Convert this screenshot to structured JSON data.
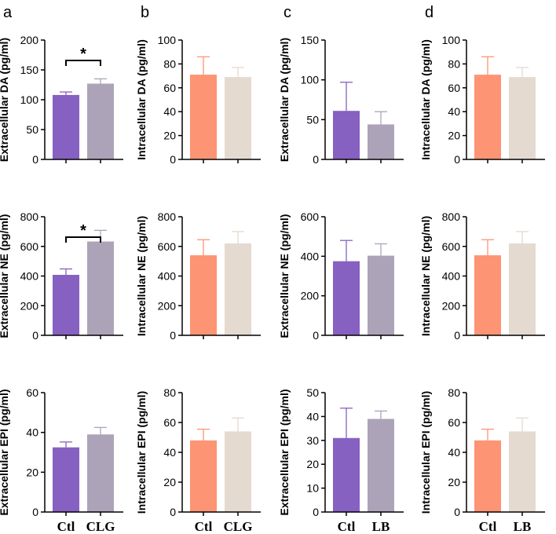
{
  "chart_data": [
    {
      "type": "bar",
      "panel": "a",
      "ylabel": "Extracellular DA (pg/ml)",
      "ylim": [
        0,
        200
      ],
      "yticks": [
        0,
        50,
        100,
        150,
        200
      ],
      "categories": [
        "Ctl",
        "CLG"
      ],
      "values": [
        108,
        127
      ],
      "errors": [
        5,
        8
      ],
      "colors": [
        "#8661c1",
        "#ada3b8"
      ],
      "significance": "*",
      "show_xlabels": false
    },
    {
      "type": "bar",
      "panel": "b",
      "ylabel": "Intracellular DA (pg/ml)",
      "ylim": [
        0,
        100
      ],
      "yticks": [
        0,
        20,
        40,
        60,
        80,
        100
      ],
      "categories": [
        "Ctl",
        "CLG"
      ],
      "values": [
        71,
        69
      ],
      "errors": [
        15,
        8
      ],
      "colors": [
        "#fd9474",
        "#e4dad0"
      ],
      "show_xlabels": false
    },
    {
      "type": "bar",
      "panel": "c",
      "ylabel": "Extracellular DA (pg/ml)",
      "ylim": [
        0,
        150
      ],
      "yticks": [
        0,
        50,
        100,
        150
      ],
      "categories": [
        "Ctl",
        "LB"
      ],
      "values": [
        61,
        44
      ],
      "errors": [
        36,
        16
      ],
      "colors": [
        "#8661c1",
        "#ada3b8"
      ],
      "show_xlabels": false
    },
    {
      "type": "bar",
      "panel": "d",
      "ylabel": "Intracellular DA (pg/ml)",
      "ylim": [
        0,
        100
      ],
      "yticks": [
        0,
        20,
        40,
        60,
        80,
        100
      ],
      "categories": [
        "Ctl",
        "LB"
      ],
      "values": [
        71,
        69
      ],
      "errors": [
        15,
        8
      ],
      "colors": [
        "#fd9474",
        "#e4dad0"
      ],
      "show_xlabels": false
    },
    {
      "type": "bar",
      "ylabel": "Extracellular NE (pg/ml)",
      "ylim": [
        0,
        800
      ],
      "yticks": [
        0,
        200,
        400,
        600,
        800
      ],
      "categories": [
        "Ctl",
        "CLG"
      ],
      "values": [
        408,
        633
      ],
      "errors": [
        40,
        75
      ],
      "colors": [
        "#8661c1",
        "#ada3b8"
      ],
      "significance": "*",
      "show_xlabels": false
    },
    {
      "type": "bar",
      "ylabel": "Intracellular NE (pg/ml)",
      "ylim": [
        0,
        800
      ],
      "yticks": [
        0,
        200,
        400,
        600,
        800
      ],
      "categories": [
        "Ctl",
        "CLG"
      ],
      "values": [
        540,
        620
      ],
      "errors": [
        105,
        80
      ],
      "colors": [
        "#fd9474",
        "#e4dad0"
      ],
      "show_xlabels": false
    },
    {
      "type": "bar",
      "ylabel": "Extracellular NE (pg/ml)",
      "ylim": [
        0,
        600
      ],
      "yticks": [
        0,
        200,
        400,
        600
      ],
      "categories": [
        "Ctl",
        "LB"
      ],
      "values": [
        375,
        403
      ],
      "errors": [
        105,
        60
      ],
      "colors": [
        "#8661c1",
        "#ada3b8"
      ],
      "show_xlabels": false
    },
    {
      "type": "bar",
      "ylabel": "Intracellular NE (pg/ml)",
      "ylim": [
        0,
        800
      ],
      "yticks": [
        0,
        200,
        400,
        600,
        800
      ],
      "categories": [
        "Ctl",
        "LB"
      ],
      "values": [
        540,
        620
      ],
      "errors": [
        105,
        80
      ],
      "colors": [
        "#fd9474",
        "#e4dad0"
      ],
      "show_xlabels": false
    },
    {
      "type": "bar",
      "ylabel": "Extracellular EPI (pg/ml)",
      "ylim": [
        0,
        60
      ],
      "yticks": [
        0,
        20,
        40,
        60
      ],
      "categories": [
        "Ctl",
        "CLG"
      ],
      "values": [
        32.5,
        39
      ],
      "errors": [
        2.7,
        3.5
      ],
      "colors": [
        "#8661c1",
        "#ada3b8"
      ],
      "show_xlabels": true
    },
    {
      "type": "bar",
      "ylabel": "Intracellular EPI (pg/ml)",
      "ylim": [
        0,
        80
      ],
      "yticks": [
        0,
        20,
        40,
        60,
        80
      ],
      "categories": [
        "Ctl",
        "CLG"
      ],
      "values": [
        48,
        54
      ],
      "errors": [
        7.5,
        9
      ],
      "colors": [
        "#fd9474",
        "#e4dad0"
      ],
      "show_xlabels": true
    },
    {
      "type": "bar",
      "ylabel": "Extracellular EPI (pg/ml)",
      "ylim": [
        0,
        50
      ],
      "yticks": [
        0,
        10,
        20,
        30,
        40,
        50
      ],
      "categories": [
        "Ctl",
        "LB"
      ],
      "values": [
        31,
        39
      ],
      "errors": [
        12.5,
        3.3
      ],
      "colors": [
        "#8661c1",
        "#ada3b8"
      ],
      "show_xlabels": true
    },
    {
      "type": "bar",
      "ylabel": "Intracellular EPI (pg/ml)",
      "ylim": [
        0,
        80
      ],
      "yticks": [
        0,
        20,
        40,
        60,
        80
      ],
      "categories": [
        "Ctl",
        "LB"
      ],
      "values": [
        48,
        54
      ],
      "errors": [
        7.5,
        9
      ],
      "colors": [
        "#fd9474",
        "#e4dad0"
      ],
      "show_xlabels": true
    }
  ]
}
